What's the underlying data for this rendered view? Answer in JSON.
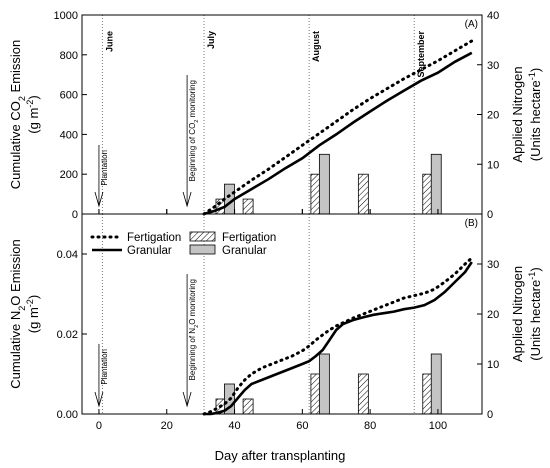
{
  "chart_data": [
    {
      "type": "line",
      "panel": "(A)",
      "ylabel": [
        "Cumulative CO",
        "2",
        " Emission"
      ],
      "yunit": [
        "(g m",
        "-2",
        ")"
      ],
      "y2label": "Applied Nitrogen",
      "y2unit": [
        "(Units hectare",
        "-1",
        ")"
      ],
      "xlim": [
        -5,
        113
      ],
      "ylim": [
        0,
        1000
      ],
      "y2lim": [
        0,
        40
      ],
      "xticks": [
        0,
        20,
        40,
        60,
        80,
        100
      ],
      "yticks": [
        0,
        200,
        400,
        600,
        800,
        1000
      ],
      "y2ticks": [
        0,
        10,
        20,
        30,
        40
      ],
      "grid": false,
      "month_markers": [
        {
          "label": "June",
          "x": 1
        },
        {
          "label": "July",
          "x": 31
        },
        {
          "label": "August",
          "x": 62
        },
        {
          "label": "September",
          "x": 93
        }
      ],
      "annotations": [
        {
          "text": "Plantation",
          "x": 0
        },
        {
          "text": [
            "Beginning of CO",
            "2",
            " monitoring"
          ],
          "x": 26
        }
      ],
      "series": [
        {
          "name": "Fertigation",
          "style": "dotted",
          "x": [
            31,
            34,
            37,
            40,
            45,
            50,
            55,
            60,
            65,
            70,
            75,
            80,
            85,
            90,
            95,
            100,
            105,
            110
          ],
          "values": [
            0,
            35,
            75,
            110,
            170,
            225,
            285,
            345,
            405,
            465,
            525,
            580,
            630,
            680,
            725,
            770,
            820,
            870
          ]
        },
        {
          "name": "Granular",
          "style": "solid",
          "x": [
            31,
            34,
            37,
            40,
            45,
            50,
            55,
            60,
            65,
            70,
            75,
            80,
            85,
            90,
            95,
            100,
            105,
            110
          ],
          "values": [
            0,
            15,
            35,
            75,
            125,
            175,
            230,
            280,
            345,
            400,
            460,
            515,
            570,
            620,
            670,
            710,
            765,
            810
          ]
        },
        {
          "name": "Fertigation",
          "type": "bar",
          "axis": "y2",
          "hatch": true,
          "x": [
            36,
            44,
            64,
            78,
            97
          ],
          "values": [
            3,
            3,
            8,
            8,
            8
          ]
        },
        {
          "name": "Granular",
          "type": "bar",
          "axis": "y2",
          "hatch": false,
          "x": [
            38.5,
            66.5,
            99.5
          ],
          "values": [
            6,
            12,
            12
          ]
        }
      ]
    },
    {
      "type": "line",
      "panel": "(B)",
      "ylabel": [
        "Cumulative N",
        "2",
        "O Emission"
      ],
      "yunit": [
        "(g m",
        "-2",
        ")"
      ],
      "y2label": "Applied Nitrogen",
      "y2unit": [
        "(Units hectare",
        "-1",
        ")"
      ],
      "xlabel": "Day after transplanting",
      "xlim": [
        -5,
        113
      ],
      "ylim": [
        0,
        0.05
      ],
      "y2lim": [
        0,
        40
      ],
      "xticks": [
        0,
        20,
        40,
        60,
        80,
        100
      ],
      "yticks": [
        "0.00",
        "0.02",
        "0.04"
      ],
      "ytick_values": [
        0,
        0.02,
        0.04
      ],
      "y2ticks": [
        0,
        10,
        20,
        30
      ],
      "grid": false,
      "legend": {
        "placement": "top-left",
        "entries": [
          "Fertigation",
          "Granular",
          "Fertigation",
          "Granular"
        ]
      },
      "annotations": [
        {
          "text": "Plantation",
          "x": 0
        },
        {
          "text": [
            "Beginning of N",
            "2",
            "O monitoring"
          ],
          "x": 26
        }
      ],
      "series": [
        {
          "name": "Fertigation",
          "style": "dotted",
          "x": [
            31,
            33,
            35,
            37,
            39,
            41,
            43,
            45,
            48,
            51,
            54,
            57,
            60,
            62,
            64,
            66,
            68,
            70,
            72,
            75,
            78,
            81,
            84,
            87,
            90,
            93,
            96,
            99,
            102,
            105,
            108,
            110
          ],
          "values": [
            0,
            0.0006,
            0.0015,
            0.0025,
            0.004,
            0.0065,
            0.0085,
            0.01,
            0.0115,
            0.0125,
            0.0135,
            0.0145,
            0.0158,
            0.017,
            0.0185,
            0.0198,
            0.021,
            0.022,
            0.0228,
            0.024,
            0.025,
            0.026,
            0.027,
            0.028,
            0.029,
            0.0296,
            0.0302,
            0.0312,
            0.033,
            0.035,
            0.0375,
            0.039
          ]
        },
        {
          "name": "Granular",
          "style": "solid",
          "x": [
            31,
            33,
            35,
            37,
            39,
            41,
            43,
            45,
            48,
            51,
            54,
            57,
            60,
            62,
            64,
            66,
            68,
            70,
            72,
            75,
            78,
            81,
            84,
            87,
            90,
            93,
            96,
            99,
            102,
            105,
            108,
            110
          ],
          "values": [
            0,
            0,
            0.0003,
            0.0008,
            0.002,
            0.004,
            0.006,
            0.0075,
            0.0085,
            0.0095,
            0.0105,
            0.0115,
            0.0125,
            0.0132,
            0.0145,
            0.016,
            0.0185,
            0.021,
            0.0225,
            0.0235,
            0.0242,
            0.0248,
            0.0252,
            0.0256,
            0.0262,
            0.0266,
            0.0272,
            0.0285,
            0.0305,
            0.033,
            0.0355,
            0.038
          ]
        },
        {
          "name": "Fertigation",
          "type": "bar",
          "axis": "y2",
          "hatch": true,
          "x": [
            36,
            44,
            64,
            78,
            97
          ],
          "values": [
            3,
            3,
            8,
            8,
            8
          ]
        },
        {
          "name": "Granular",
          "type": "bar",
          "axis": "y2",
          "hatch": false,
          "x": [
            38.5,
            66.5,
            99.5
          ],
          "values": [
            6,
            12,
            12
          ]
        }
      ]
    }
  ]
}
